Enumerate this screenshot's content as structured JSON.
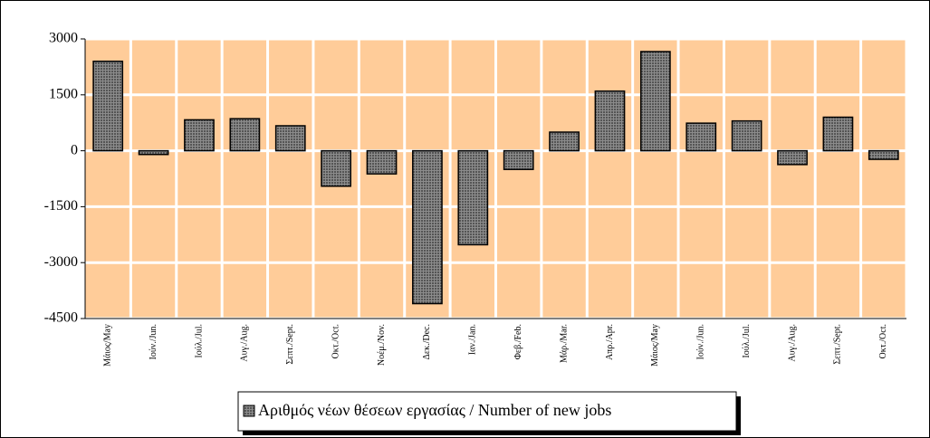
{
  "chart_data": {
    "type": "bar",
    "legend": "Αριθμός νέων θέσεων εργασίας / Number of new jobs",
    "categories": [
      "Μάιος/May",
      "Ιούν./Jun.",
      "Ιούλ./Jul.",
      "Αυγ./Aug.",
      "Σεπτ./Sept.",
      "Οκτ./Oct.",
      "Νοέμ./Nov.",
      "Δεκ./Dec.",
      "Ιαν./Jan.",
      "Φεβ./Feb.",
      "Μάρ./Mar.",
      "Απρ./Apr.",
      "Μάιος/May",
      "Ιούν./Jun.",
      "Ιούλ./Jul.",
      "Αυγ./Aug.",
      "Σεπτ./Sept.",
      "Οκτ./Oct."
    ],
    "values": [
      2400,
      -100,
      830,
      860,
      670,
      -950,
      -620,
      -4100,
      -2520,
      -500,
      500,
      1600,
      2660,
      740,
      800,
      -370,
      900,
      -230
    ],
    "color": "#8c8c8c",
    "background": "#ffcc99",
    "ylim": [
      -4500,
      3000
    ],
    "yticks": [
      3000,
      1500,
      0,
      -1500,
      -3000,
      -4500
    ],
    "grid": true
  }
}
